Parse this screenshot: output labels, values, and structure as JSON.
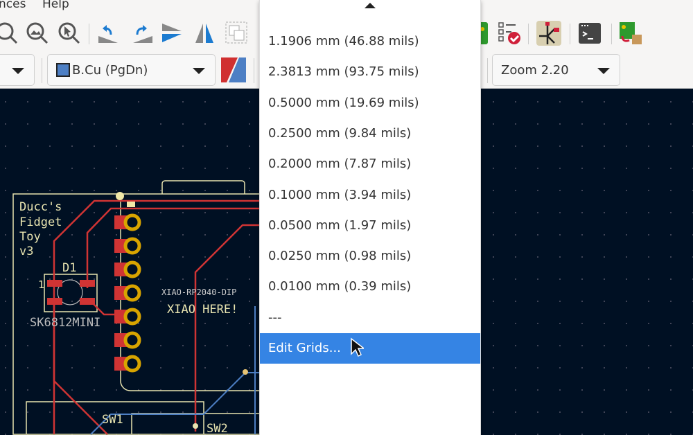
{
  "menubar": {
    "items": [
      "nces",
      "Help"
    ]
  },
  "toolbar": {
    "layer_select": "B.Cu (PgDn)",
    "zoom_select": "Zoom 2.20",
    "icons": [
      "zoom-fit-icon",
      "zoom-objects-icon",
      "zoom-selection-icon",
      "rotate-ccw-icon",
      "rotate-cw-icon",
      "mirror-vertical-icon",
      "mirror-horizontal-icon",
      "group-icon",
      "pcb-icon",
      "drc-checklist-icon",
      "schematic-icon",
      "scripting-console-icon",
      "plugin-pcb-icon"
    ]
  },
  "grid_menu": {
    "items": [
      "1.1906 mm (46.88 mils)",
      "2.3813 mm (93.75 mils)",
      "0.5000 mm (19.69 mils)",
      "0.2500 mm (9.84 mils)",
      "0.2000 mm (7.87 mils)",
      "0.1000 mm (3.94 mils)",
      "0.0500 mm (1.97 mils)",
      "0.0250 mm (0.98 mils)",
      "0.0100 mm (0.39 mils)",
      "---",
      "Edit Grids..."
    ],
    "selected": "Edit Grids..."
  },
  "pcb": {
    "title_lines": [
      "Ducc's",
      "Fidget",
      "Toy",
      "v3"
    ],
    "d1_ref": "D1",
    "d1_value": "SK6812MINI",
    "pin1": "1",
    "xiao_value": "XIAO-RP2040-DIP",
    "xiao_note": "XIAO HERE!",
    "sw1": "SW1",
    "sw2": "SW2"
  },
  "colors": {
    "canvas": "#001023",
    "front_copper": "#c83434",
    "back_copper": "#4d7fc4",
    "silkscreen": "#e8e4b0",
    "pad": "#d8a400",
    "highlight": "#3584e4"
  }
}
